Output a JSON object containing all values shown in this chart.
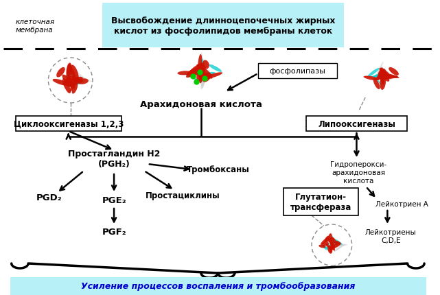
{
  "bg_color": "#ffffff",
  "fig_width": 6.41,
  "fig_height": 4.31,
  "top_box_color": "#b8f0f8",
  "top_box_text": "Высвобождение длинноцепочечных жирных\nкислот из фосфолипидов мембраны клеток",
  "cell_membrane_label": "клеточная\nмембрана",
  "phospholipase_label": "фосфолипазы",
  "arachidonic_label": "Арахидоновая кислота",
  "cyclooxygenase_label": "Циклооксигеназы 1,2,3",
  "lipoxygenase_label": "Липооксигеназы",
  "prostaglandin_label": "Простагландин H2\n(PGH₂)",
  "thromboxanes_label": "Тромбоксаны",
  "prostacyclins_label": "Простациклины",
  "pgd2_label": "PGD₂",
  "pge2_label": "PGE₂",
  "pgf2_label": "PGF₂",
  "hydroperoxy_label": "Гидроперокси-\nарахидоновая\nкислота",
  "glutathione_label": "Глутатион-\nтрансфераза",
  "leukotriene_a_label": "Лейкотриен А",
  "leukotrienes_label": "Лейкотриены\nC,D,E",
  "bottom_text": "Усиление процессов воспаления и тромбообразования",
  "bottom_text_color": "#0000cc",
  "bottom_box_color": "#b8f0f8",
  "arrow_color": "#000000",
  "box_color": "#ffffff",
  "box_edge_color": "#000000"
}
